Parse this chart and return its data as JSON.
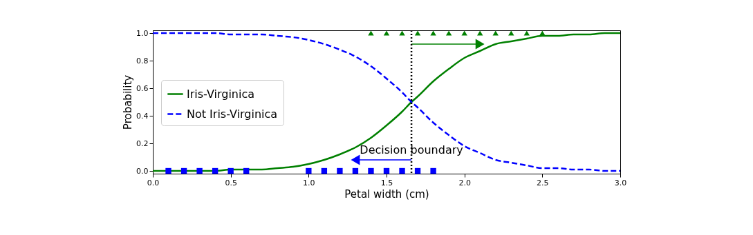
{
  "chart_data": {
    "type": "line",
    "xlabel": "Petal width (cm)",
    "ylabel": "Probability",
    "xlim": [
      0,
      3
    ],
    "ylim": [
      -0.02,
      1.02
    ],
    "xticks": [
      {
        "value": 0,
        "label": "0.0"
      },
      {
        "value": 0.5,
        "label": "0.5"
      },
      {
        "value": 1,
        "label": "1.0"
      },
      {
        "value": 1.5,
        "label": "1.5"
      },
      {
        "value": 2,
        "label": "2.0"
      },
      {
        "value": 2.5,
        "label": "2.5"
      },
      {
        "value": 3,
        "label": "3.0"
      }
    ],
    "yticks": [
      {
        "value": 0,
        "label": "0.0"
      },
      {
        "value": 0.2,
        "label": "0.2"
      },
      {
        "value": 0.4,
        "label": "0.4"
      },
      {
        "value": 0.6,
        "label": "0.6"
      },
      {
        "value": 0.8,
        "label": "0.8"
      },
      {
        "value": 1,
        "label": "1.0"
      }
    ],
    "grid": false,
    "legend": "left",
    "ref_lines": [
      {
        "axis": "x",
        "value": 1.66,
        "color": "#000000",
        "line_style": "dotted"
      }
    ],
    "annotations": [
      {
        "text": "Decision  boundary",
        "x": 1.66,
        "y": 0.15
      }
    ],
    "x": [
      0,
      0.1,
      0.2,
      0.3,
      0.4,
      0.5,
      0.6,
      0.7,
      0.8,
      0.9,
      1.0,
      1.1,
      1.2,
      1.3,
      1.4,
      1.5,
      1.6,
      1.66,
      1.7,
      1.8,
      1.9,
      2.0,
      2.1,
      2.2,
      2.3,
      2.4,
      2.5,
      2.6,
      2.7,
      2.8,
      2.9,
      3.0
    ],
    "series": [
      {
        "name": "Iris-Virginica",
        "color": "#008000",
        "type": "line",
        "line_style": "solid",
        "values": [
          0.0,
          0.0,
          0.0,
          0.0,
          0.0,
          0.01,
          0.01,
          0.01,
          0.02,
          0.03,
          0.05,
          0.08,
          0.12,
          0.17,
          0.24,
          0.33,
          0.43,
          0.5,
          0.54,
          0.65,
          0.74,
          0.82,
          0.87,
          0.92,
          0.94,
          0.96,
          0.98,
          0.98,
          0.99,
          0.99,
          1.0,
          1.0
        ]
      },
      {
        "name": "Not Iris-Virginica",
        "color": "#0000ff",
        "type": "line",
        "line_style": "dashed",
        "values": [
          1.0,
          1.0,
          1.0,
          1.0,
          1.0,
          0.99,
          0.99,
          0.99,
          0.98,
          0.97,
          0.95,
          0.92,
          0.88,
          0.83,
          0.76,
          0.67,
          0.57,
          0.5,
          0.46,
          0.35,
          0.26,
          0.18,
          0.13,
          0.08,
          0.06,
          0.04,
          0.02,
          0.02,
          0.01,
          0.01,
          0.0,
          0.0
        ]
      },
      {
        "color": "#0000ff",
        "type": "scatter",
        "marker": "square",
        "x": [
          0.1,
          0.2,
          0.3,
          0.4,
          0.5,
          0.6,
          1.0,
          1.1,
          1.2,
          1.3,
          1.4,
          1.5,
          1.6,
          1.7,
          1.8
        ],
        "values": [
          0,
          0,
          0,
          0,
          0,
          0,
          0,
          0,
          0,
          0,
          0,
          0,
          0,
          0,
          0
        ]
      },
      {
        "color": "#008000",
        "type": "scatter",
        "marker": "triangle",
        "x": [
          1.4,
          1.5,
          1.6,
          1.7,
          1.8,
          1.9,
          2.0,
          2.1,
          2.2,
          2.3,
          2.4,
          2.5
        ],
        "values": [
          1,
          1,
          1,
          1,
          1,
          1,
          1,
          1,
          1,
          1,
          1,
          1
        ]
      },
      {
        "color": "#008000",
        "type": "line",
        "marker": "triangle",
        "x": [
          1.66,
          2.1
        ],
        "values": [
          0.92,
          0.92
        ]
      },
      {
        "color": "#0000ff",
        "type": "line",
        "marker": "triangle",
        "x": [
          1.66,
          1.3
        ],
        "values": [
          0.08,
          0.08
        ]
      }
    ]
  }
}
